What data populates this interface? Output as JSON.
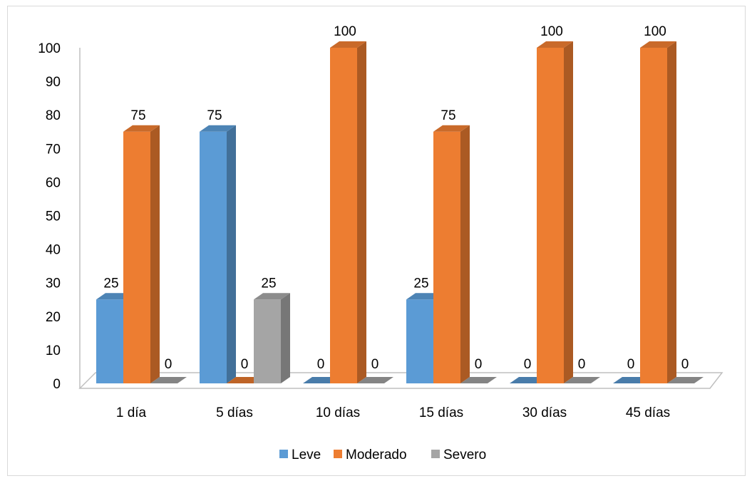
{
  "chart_data": {
    "type": "bar",
    "categories": [
      "1 día",
      "5 días",
      "10 días",
      "15 días",
      "30 días",
      "45 días"
    ],
    "series": [
      {
        "name": "Leve",
        "values": [
          25,
          75,
          0,
          25,
          0,
          0
        ],
        "color": "#5b9bd5"
      },
      {
        "name": "Moderado",
        "values": [
          75,
          0,
          100,
          75,
          100,
          100
        ],
        "color": "#ed7d31"
      },
      {
        "name": "Severo",
        "values": [
          0,
          25,
          0,
          0,
          0,
          0
        ],
        "color": "#a5a5a5"
      }
    ],
    "ylim": [
      0,
      100
    ],
    "yticks": [
      0,
      10,
      20,
      30,
      40,
      50,
      60,
      70,
      80,
      90,
      100
    ],
    "data_labels": [
      [
        "25",
        "75",
        "0"
      ],
      [
        "75",
        "0",
        "25"
      ],
      [
        "0",
        "100",
        "0"
      ],
      [
        "25",
        "75",
        "0"
      ],
      [
        "0",
        "100",
        "0"
      ],
      [
        "0",
        "100",
        "0"
      ]
    ],
    "legend_position": "bottom",
    "style": "3d-clustered-column",
    "grid": false
  }
}
